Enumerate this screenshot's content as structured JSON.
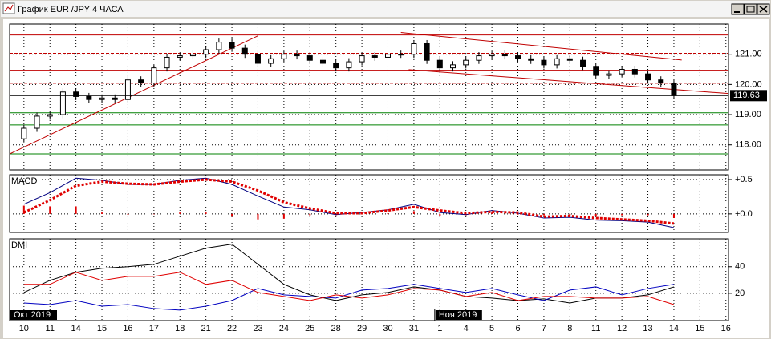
{
  "chart_data": [
    {
      "type": "candlestick",
      "title": "График EUR /JPY  4 ЧАСА",
      "x": [
        0,
        0.5,
        1,
        1.5,
        2,
        2.5,
        3,
        3.5,
        4,
        4.5,
        5,
        5.5,
        6,
        6.5,
        7,
        7.5,
        8,
        8.5,
        9,
        9.5,
        10,
        10.5,
        11,
        11.5,
        12,
        12.5,
        13,
        13.5,
        14,
        14.5,
        15,
        15.5,
        16,
        16.5,
        17,
        17.5,
        18,
        18.5,
        19,
        19.5,
        20,
        20.5,
        21,
        21.5,
        22,
        22.5,
        23,
        23.5,
        24,
        24.5,
        25
      ],
      "open": [
        118.2,
        118.55,
        118.95,
        119.0,
        119.75,
        119.6,
        119.5,
        119.55,
        119.5,
        120.15,
        120.05,
        120.55,
        120.9,
        120.95,
        121.0,
        121.15,
        121.4,
        121.2,
        121.0,
        120.7,
        120.85,
        121.0,
        120.95,
        120.8,
        120.7,
        120.55,
        120.75,
        120.95,
        120.9,
        121.0,
        121.0,
        121.35,
        120.8,
        120.55,
        120.65,
        120.8,
        120.95,
        121.0,
        120.95,
        120.85,
        120.8,
        120.65,
        120.85,
        120.8,
        120.6,
        120.3,
        120.35,
        120.5,
        120.35,
        120.15,
        120.05
      ],
      "high": [
        118.67,
        119.07,
        119.12,
        119.87,
        119.87,
        119.72,
        119.67,
        119.67,
        120.27,
        120.27,
        120.67,
        121.02,
        121.07,
        121.12,
        121.27,
        121.52,
        121.52,
        121.32,
        121.12,
        120.97,
        121.12,
        121.12,
        121.07,
        120.92,
        120.82,
        120.87,
        121.07,
        121.07,
        121.12,
        121.12,
        121.47,
        121.47,
        120.92,
        120.77,
        120.92,
        121.07,
        121.12,
        121.12,
        121.07,
        120.97,
        120.92,
        120.97,
        120.97,
        120.92,
        120.72,
        120.47,
        120.62,
        120.62,
        120.47,
        120.27,
        120.17
      ],
      "low": [
        118.08,
        118.43,
        118.83,
        118.88,
        119.48,
        119.38,
        119.38,
        119.38,
        119.38,
        119.93,
        119.93,
        120.43,
        120.78,
        120.83,
        120.88,
        121.03,
        121.08,
        120.88,
        120.58,
        120.58,
        120.73,
        120.83,
        120.68,
        120.58,
        120.43,
        120.43,
        120.63,
        120.78,
        120.78,
        120.88,
        120.88,
        120.68,
        120.43,
        120.43,
        120.53,
        120.68,
        120.83,
        120.83,
        120.73,
        120.68,
        120.53,
        120.53,
        120.68,
        120.48,
        120.18,
        120.18,
        120.23,
        120.23,
        120.03,
        119.93,
        119.51
      ],
      "close": [
        118.55,
        118.95,
        119.0,
        119.75,
        119.6,
        119.5,
        119.55,
        119.5,
        120.15,
        120.05,
        120.55,
        120.9,
        120.95,
        121.0,
        121.15,
        121.4,
        121.2,
        121.0,
        120.7,
        120.85,
        121.0,
        120.95,
        120.8,
        120.7,
        120.55,
        120.75,
        120.95,
        120.9,
        121.0,
        121.0,
        121.35,
        120.8,
        120.55,
        120.65,
        120.8,
        120.95,
        121.0,
        120.95,
        120.85,
        120.8,
        120.65,
        120.85,
        120.8,
        120.6,
        120.3,
        120.35,
        120.5,
        120.35,
        120.15,
        120.05,
        119.63
      ],
      "up_color": "#ffffff",
      "down_color": "#000000",
      "xlim": [
        -0.55,
        27.1
      ],
      "ylim": [
        117.17,
        122.0
      ],
      "yticks": [
        {
          "value": 121,
          "label": "121.00"
        },
        {
          "value": 120,
          "label": "120.00"
        },
        {
          "value": 119,
          "label": "119.00"
        },
        {
          "value": 118,
          "label": "118.00"
        }
      ],
      "xticks": [
        {
          "value": 0,
          "label": "10"
        },
        {
          "value": 1,
          "label": "11"
        },
        {
          "value": 2,
          "label": "14"
        },
        {
          "value": 3,
          "label": "15"
        },
        {
          "value": 4,
          "label": "16"
        },
        {
          "value": 5,
          "label": "17"
        },
        {
          "value": 6,
          "label": "18"
        },
        {
          "value": 7,
          "label": "21"
        },
        {
          "value": 8,
          "label": "22"
        },
        {
          "value": 9,
          "label": "23"
        },
        {
          "value": 10,
          "label": "24"
        },
        {
          "value": 11,
          "label": "25"
        },
        {
          "value": 12,
          "label": "28"
        },
        {
          "value": 13,
          "label": "29"
        },
        {
          "value": 14,
          "label": "30"
        },
        {
          "value": 15,
          "label": "31"
        },
        {
          "value": 16,
          "label": "1"
        },
        {
          "value": 17,
          "label": "4"
        },
        {
          "value": 18,
          "label": "5"
        },
        {
          "value": 19,
          "label": "6"
        },
        {
          "value": 20,
          "label": "7"
        },
        {
          "value": 21,
          "label": "8"
        },
        {
          "value": 22,
          "label": "11"
        },
        {
          "value": 23,
          "label": "12"
        },
        {
          "value": 24,
          "label": "13"
        },
        {
          "value": 25,
          "label": "14"
        },
        {
          "value": 26,
          "label": "15"
        },
        {
          "value": 27,
          "label": "16"
        }
      ],
      "month_labels": [
        {
          "value": -0.55,
          "label": "Окт 2019"
        },
        {
          "value": 15.8,
          "label": "Ноя 2019"
        }
      ],
      "levels": [
        {
          "value": 121.64,
          "color": "#c00000",
          "dotted": false
        },
        {
          "value": 121.03,
          "color": "#c00000",
          "dotted": true
        },
        {
          "value": 120.47,
          "color": "#c00000",
          "dotted": false
        },
        {
          "value": 120.04,
          "color": "#c00000",
          "dotted": true
        },
        {
          "value": 119.06,
          "color": "#008000",
          "dotted": false
        },
        {
          "value": 118.66,
          "color": "#008000",
          "dotted": false
        },
        {
          "value": 117.7,
          "color": "#008000",
          "dotted": false
        }
      ],
      "trendlines": [
        {
          "x": [
            -0.55,
            9
          ],
          "y": [
            117.7,
            121.61
          ],
          "color": "#c00000"
        },
        {
          "x": [
            14.5,
            25.3
          ],
          "y": [
            121.72,
            120.81
          ],
          "color": "#c00000"
        },
        {
          "x": [
            14.8,
            27.1
          ],
          "y": [
            120.49,
            119.7
          ],
          "color": "#c00000"
        }
      ],
      "last_price": {
        "value": 119.63,
        "label": "119.63"
      },
      "grid": true
    },
    {
      "type": "macd",
      "label": "MACD",
      "x": [
        0,
        1,
        2,
        3,
        4,
        5,
        6,
        7,
        8,
        9,
        10,
        11,
        12,
        13,
        14,
        15,
        16,
        17,
        18,
        19,
        20,
        21,
        22,
        23,
        24,
        25
      ],
      "ylim": [
        -0.27,
        0.57
      ],
      "yticks": [
        {
          "value": 0.5,
          "label": "+0.5"
        },
        {
          "value": 0,
          "label": "+0.0"
        }
      ],
      "series": [
        {
          "color": "#000080",
          "dotted": false,
          "values": [
            0.14,
            0.31,
            0.52,
            0.49,
            0.43,
            0.43,
            0.49,
            0.52,
            0.43,
            0.26,
            0.1,
            0.06,
            -0.01,
            0.02,
            0.06,
            0.14,
            0.02,
            -0.01,
            0.05,
            0.01,
            -0.06,
            -0.05,
            -0.09,
            -0.1,
            -0.12,
            -0.2
          ]
        },
        {
          "color": "#e00000",
          "dotted": true,
          "values": [
            0.02,
            0.2,
            0.41,
            0.47,
            0.44,
            0.43,
            0.47,
            0.5,
            0.47,
            0.34,
            0.17,
            0.08,
            0.01,
            0.01,
            0.05,
            0.1,
            0.05,
            0.01,
            0.03,
            0.02,
            -0.04,
            -0.03,
            -0.06,
            -0.08,
            -0.1,
            -0.14
          ]
        }
      ],
      "histogram": {
        "color": "#e00000",
        "values": [
          0.12,
          0.11,
          0.11,
          0.02,
          -0.01,
          0,
          0.02,
          0.02,
          -0.04,
          -0.08,
          -0.07,
          -0.02,
          -0.02,
          0.01,
          0.01,
          0.04,
          -0.03,
          -0.02,
          0.02,
          -0.01,
          -0.02,
          -0.02,
          -0.03,
          -0.02,
          -0.02,
          -0.06
        ]
      }
    },
    {
      "type": "line",
      "label": "DMI",
      "x": [
        0,
        1,
        2,
        3,
        4,
        5,
        6,
        7,
        8,
        9,
        10,
        11,
        12,
        13,
        14,
        15,
        16,
        17,
        18,
        19,
        20,
        21,
        22,
        23,
        24,
        25
      ],
      "ylim": [
        -0.6,
        61
      ],
      "yticks": [
        40,
        20
      ],
      "series": [
        {
          "color": "#000000",
          "dotted": false,
          "values": [
            20.6,
            29.7,
            35.8,
            38.8,
            40,
            41.8,
            47.9,
            54,
            57,
            41.8,
            26.7,
            18.8,
            14.5,
            18.8,
            20.6,
            24.8,
            22.4,
            17.6,
            16.4,
            14.5,
            15.8,
            12.7,
            16.4,
            16.4,
            18.8,
            24.8
          ]
        },
        {
          "color": "#0000c0",
          "dotted": false,
          "values": [
            12.7,
            11.5,
            14.5,
            10.3,
            11.5,
            8.5,
            7.3,
            10.3,
            14.5,
            23.6,
            18.8,
            17.6,
            16.4,
            22.4,
            23.6,
            26.7,
            23.6,
            20.6,
            23.6,
            18.8,
            14.5,
            22.4,
            24.8,
            18.8,
            23.6,
            26.7
          ]
        },
        {
          "color": "#e00000",
          "dotted": false,
          "values": [
            26.7,
            26.7,
            35.8,
            29.7,
            32.7,
            32.7,
            35.8,
            26.7,
            29.7,
            20.6,
            17.6,
            14.5,
            18.8,
            16.4,
            18.8,
            23.6,
            22.4,
            17.6,
            20.6,
            14.5,
            17.6,
            17.6,
            16.4,
            16.4,
            17.6,
            11.5
          ]
        }
      ]
    }
  ]
}
